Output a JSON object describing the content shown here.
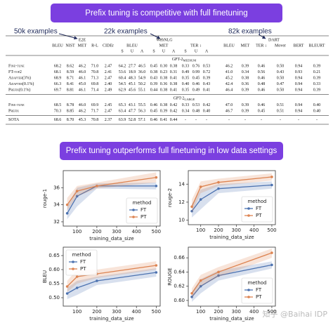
{
  "banners": [
    "Prefix tuning is competitive with full finetuning",
    "Prefix tuning outperforms full finetuning in low data settings"
  ],
  "annotations": [
    "50k examples",
    "22k examples",
    "82k examples"
  ],
  "table": {
    "groups": [
      {
        "name": "E2E",
        "headers": [
          "BLEU",
          "NIST",
          "MET",
          "R-L",
          "CIDEr"
        ]
      },
      {
        "name": "WebNLG",
        "headers": [
          "BLEU",
          "MET",
          "TER ↓"
        ],
        "subheaders": [
          "S",
          "U",
          "A",
          "S",
          "U",
          "A",
          "S",
          "U",
          "A"
        ]
      },
      {
        "name": "DART",
        "headers": [
          "BLEU",
          "MET",
          "TER ↓",
          "Mover",
          "BERT",
          "BLEURT"
        ]
      }
    ],
    "sections": [
      {
        "title": "GPT-2",
        "title_sub": "MEDIUM",
        "rows": [
          {
            "method": "Fine-tune",
            "values": [
              "68.2",
              "8.62",
              "46.2",
              "71.0",
              "2.47",
              "64.2",
              "27.7",
              "46.5",
              "0.45",
              "0.30",
              "0.38",
              "0.33",
              "0.76",
              "0.53",
              "46.2",
              "0.39",
              "0.46",
              "0.50",
              "0.94",
              "0.39"
            ]
          },
          {
            "method": "FT-top2",
            "values": [
              "68.1",
              "8.59",
              "46.0",
              "70.8",
              "2.41",
              "53.6",
              "18.9",
              "36.0",
              "0.38",
              "0.23",
              "0.31",
              "0.49",
              "0.99",
              "0.72",
              "41.0",
              "0.34",
              "0.56",
              "0.43",
              "0.93",
              "0.21"
            ]
          },
          {
            "method": "Adapter(3%)",
            "values": [
              "68.9",
              "8.71",
              "46.1",
              "71.3",
              "2.47",
              "60.4",
              "48.3",
              "54.9",
              "0.43",
              "0.38",
              "0.41",
              "0.35",
              "0.45",
              "0.39",
              "45.2",
              "0.38",
              "0.46",
              "0.50",
              "0.94",
              "0.39"
            ]
          },
          {
            "method": "Adapter(0.1%)",
            "values": [
              "66.3",
              "8.41",
              "45.0",
              "69.8",
              "2.40",
              "54.5",
              "45.1",
              "50.2",
              "0.39",
              "0.36",
              "0.38",
              "0.40",
              "0.46",
              "0.43",
              "42.4",
              "0.36",
              "0.48",
              "0.47",
              "0.94",
              "0.33"
            ]
          },
          {
            "method": "Prefix(0.1%)",
            "values": [
              "69.7",
              "8.81",
              "46.1",
              "71.4",
              "2.49",
              "62.9",
              "45.6",
              "55.1",
              "0.44",
              "0.38",
              "0.41",
              "0.35",
              "0.49",
              "0.41",
              "46.4",
              "0.39",
              "0.46",
              "0.50",
              "0.94",
              "0.39"
            ]
          }
        ]
      },
      {
        "title": "GPT-2",
        "title_sub": "LARGE",
        "rows": [
          {
            "method": "Fine-tune",
            "values": [
              "68.5",
              "8.78",
              "46.0",
              "69.9",
              "2.45",
              "65.3",
              "43.1",
              "55.5",
              "0.46",
              "0.38",
              "0.42",
              "0.33",
              "0.53",
              "0.42",
              "47.0",
              "0.39",
              "0.46",
              "0.51",
              "0.94",
              "0.40"
            ]
          },
          {
            "method": "Prefix",
            "values": [
              "70.3",
              "8.85",
              "46.2",
              "71.7",
              "2.47",
              "63.4",
              "47.7",
              "56.3",
              "0.45",
              "0.39",
              "0.42",
              "0.34",
              "0.48",
              "0.40",
              "46.7",
              "0.39",
              "0.45",
              "0.51",
              "0.94",
              "0.40"
            ]
          }
        ]
      },
      {
        "rows": [
          {
            "method": "SOTA",
            "values": [
              "68.6",
              "8.70",
              "45.3",
              "70.8",
              "2.37",
              "63.9",
              "52.8",
              "57.1",
              "0.46",
              "0.41",
              "0.44",
              "-",
              "-",
              "-",
              "-",
              "-",
              "-",
              "-",
              "-",
              "-"
            ]
          }
        ]
      }
    ]
  },
  "chart_data": [
    {
      "type": "line",
      "xlabel": "training_data_size",
      "ylabel": "rouge-1",
      "x": [
        50,
        100,
        200,
        500
      ],
      "xlim": [
        30,
        520
      ],
      "xticks": [
        100,
        200,
        300,
        400,
        500
      ],
      "ylim": [
        31.5,
        38
      ],
      "yticks": [
        32,
        34,
        36
      ],
      "legend_title": "method",
      "legend": "lower right",
      "series": [
        {
          "name": "FT",
          "color": "#4c72b0",
          "values": [
            33.0,
            35.0,
            36.2,
            36.2
          ],
          "lower": [
            32.3,
            33.8,
            35.9,
            35.8
          ],
          "upper": [
            33.8,
            36.0,
            36.5,
            36.6
          ]
        },
        {
          "name": "PT",
          "color": "#dd8452",
          "values": [
            34.0,
            35.6,
            36.2,
            37.2
          ],
          "lower": [
            33.3,
            35.0,
            35.9,
            36.6
          ],
          "upper": [
            34.8,
            36.2,
            36.6,
            37.8
          ]
        }
      ]
    },
    {
      "type": "line",
      "xlabel": "training_data_size",
      "ylabel": "rouge-2",
      "x": [
        50,
        100,
        200,
        500
      ],
      "xlim": [
        30,
        520
      ],
      "xticks": [
        100,
        200,
        300,
        400,
        500
      ],
      "ylim": [
        9.5,
        15.5
      ],
      "yticks": [
        10,
        12,
        14
      ],
      "legend_title": "method",
      "legend": "lower right",
      "series": [
        {
          "name": "FT",
          "color": "#4c72b0",
          "values": [
            11.0,
            12.3,
            13.5,
            13.9
          ],
          "lower": [
            10.3,
            11.2,
            13.0,
            13.5
          ],
          "upper": [
            11.8,
            13.4,
            14.0,
            14.3
          ]
        },
        {
          "name": "PT",
          "color": "#dd8452",
          "values": [
            11.5,
            13.7,
            14.2,
            14.8
          ],
          "lower": [
            10.8,
            13.0,
            13.8,
            14.4
          ],
          "upper": [
            12.3,
            14.3,
            14.6,
            15.2
          ]
        }
      ]
    },
    {
      "type": "line",
      "xlabel": "training_data_size",
      "ylabel": "BLEU",
      "x": [
        50,
        100,
        200,
        500
      ],
      "xlim": [
        30,
        520
      ],
      "xticks": [
        100,
        200,
        300,
        400,
        500
      ],
      "ylim": [
        0.47,
        0.68
      ],
      "yticks": [
        {
          "value": 0.5,
          "label": "0.50"
        },
        0.55,
        {
          "value": 0.6,
          "label": "0.60"
        },
        0.65
      ],
      "legend_title": "method",
      "legend": "upper left",
      "series": [
        {
          "name": "FT",
          "color": "#4c72b0",
          "values": [
            0.515,
            0.535,
            0.56,
            0.59
          ],
          "lower": [
            0.495,
            0.51,
            0.545,
            0.575
          ],
          "upper": [
            0.535,
            0.56,
            0.575,
            0.605
          ]
        },
        {
          "name": "PT",
          "color": "#dd8452",
          "values": [
            0.54,
            0.575,
            0.585,
            0.615
          ],
          "lower": [
            0.52,
            0.55,
            0.57,
            0.6
          ],
          "upper": [
            0.56,
            0.6,
            0.6,
            0.63
          ]
        }
      ]
    },
    {
      "type": "line",
      "xlabel": "training_data_size",
      "ylabel": "ROUGE",
      "x": [
        50,
        100,
        200,
        500
      ],
      "xlim": [
        30,
        520
      ],
      "xticks": [
        100,
        200,
        300,
        400,
        500
      ],
      "ylim": [
        0.592,
        0.675
      ],
      "yticks": [
        {
          "value": 0.6,
          "label": "0.60"
        },
        0.62,
        0.64,
        0.66
      ],
      "legend_title": "method",
      "legend": "lower right",
      "series": [
        {
          "name": "FT",
          "color": "#4c72b0",
          "values": [
            0.605,
            0.62,
            0.635,
            0.65
          ],
          "lower": [
            0.598,
            0.61,
            0.628,
            0.645
          ],
          "upper": [
            0.612,
            0.63,
            0.642,
            0.655
          ]
        },
        {
          "name": "PT",
          "color": "#dd8452",
          "values": [
            0.61,
            0.628,
            0.64,
            0.667
          ],
          "lower": [
            0.603,
            0.62,
            0.633,
            0.66
          ],
          "upper": [
            0.617,
            0.636,
            0.647,
            0.673
          ]
        }
      ]
    }
  ],
  "watermark": "知乎 @Baihai IDP"
}
